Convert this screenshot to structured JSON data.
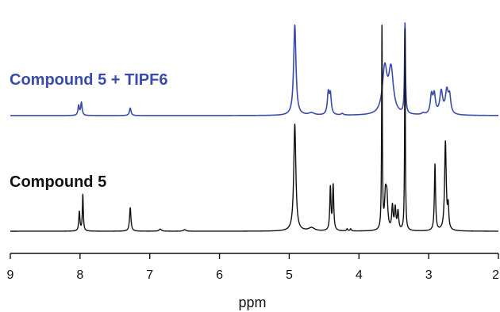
{
  "chart_data": {
    "type": "line",
    "xlabel": "ppm",
    "ylabel": "",
    "x_reversed": true,
    "xlim": [
      9,
      2
    ],
    "x_ticks": [
      9,
      8,
      7,
      6,
      5,
      4,
      3,
      2
    ],
    "grid": false,
    "series": [
      {
        "name": "Compound 5 + TIPF6",
        "color": "#3a4bab",
        "peaks": [
          {
            "ppm": 8.02,
            "height": 0.13,
            "width": 0.012
          },
          {
            "ppm": 7.98,
            "height": 0.17,
            "width": 0.012
          },
          {
            "ppm": 7.28,
            "height": 0.1,
            "width": 0.014
          },
          {
            "ppm": 4.92,
            "height": 1.2,
            "width": 0.02
          },
          {
            "ppm": 4.68,
            "height": 0.03,
            "width": 0.05
          },
          {
            "ppm": 4.44,
            "height": 0.28,
            "width": 0.016
          },
          {
            "ppm": 4.41,
            "height": 0.26,
            "width": 0.016
          },
          {
            "ppm": 4.24,
            "height": 0.02,
            "width": 0.02
          },
          {
            "ppm": 3.63,
            "height": 0.6,
            "width": 0.04
          },
          {
            "ppm": 3.54,
            "height": 0.58,
            "width": 0.04
          },
          {
            "ppm": 3.34,
            "height": 1.2,
            "width": 0.008
          },
          {
            "ppm": 3.08,
            "height": 0.02,
            "width": 0.02
          },
          {
            "ppm": 2.96,
            "height": 0.25,
            "width": 0.02
          },
          {
            "ppm": 2.92,
            "height": 0.25,
            "width": 0.02
          },
          {
            "ppm": 2.82,
            "height": 0.3,
            "width": 0.025
          },
          {
            "ppm": 2.74,
            "height": 0.3,
            "width": 0.025
          },
          {
            "ppm": 2.7,
            "height": 0.22,
            "width": 0.02
          }
        ]
      },
      {
        "name": "Compound 5",
        "color": "#111111",
        "peaks": [
          {
            "ppm": 8.01,
            "height": 0.18,
            "width": 0.01
          },
          {
            "ppm": 7.96,
            "height": 0.34,
            "width": 0.008
          },
          {
            "ppm": 7.28,
            "height": 0.22,
            "width": 0.012
          },
          {
            "ppm": 6.85,
            "height": 0.02,
            "width": 0.02
          },
          {
            "ppm": 6.5,
            "height": 0.015,
            "width": 0.02
          },
          {
            "ppm": 4.92,
            "height": 1.0,
            "width": 0.018
          },
          {
            "ppm": 4.68,
            "height": 0.03,
            "width": 0.05
          },
          {
            "ppm": 4.41,
            "height": 0.4,
            "width": 0.01
          },
          {
            "ppm": 4.37,
            "height": 0.42,
            "width": 0.01
          },
          {
            "ppm": 4.17,
            "height": 0.02,
            "width": 0.01
          },
          {
            "ppm": 4.12,
            "height": 0.02,
            "width": 0.01
          },
          {
            "ppm": 3.67,
            "height": 1.9,
            "width": 0.006
          },
          {
            "ppm": 3.62,
            "height": 0.3,
            "width": 0.015
          },
          {
            "ppm": 3.6,
            "height": 0.28,
            "width": 0.015
          },
          {
            "ppm": 3.52,
            "height": 0.22,
            "width": 0.012
          },
          {
            "ppm": 3.48,
            "height": 0.2,
            "width": 0.012
          },
          {
            "ppm": 3.44,
            "height": 0.17,
            "width": 0.012
          },
          {
            "ppm": 3.34,
            "height": 1.9,
            "width": 0.006
          },
          {
            "ppm": 2.91,
            "height": 0.62,
            "width": 0.01
          },
          {
            "ppm": 2.76,
            "height": 0.83,
            "width": 0.014
          },
          {
            "ppm": 2.72,
            "height": 0.2,
            "width": 0.01
          }
        ]
      }
    ]
  }
}
